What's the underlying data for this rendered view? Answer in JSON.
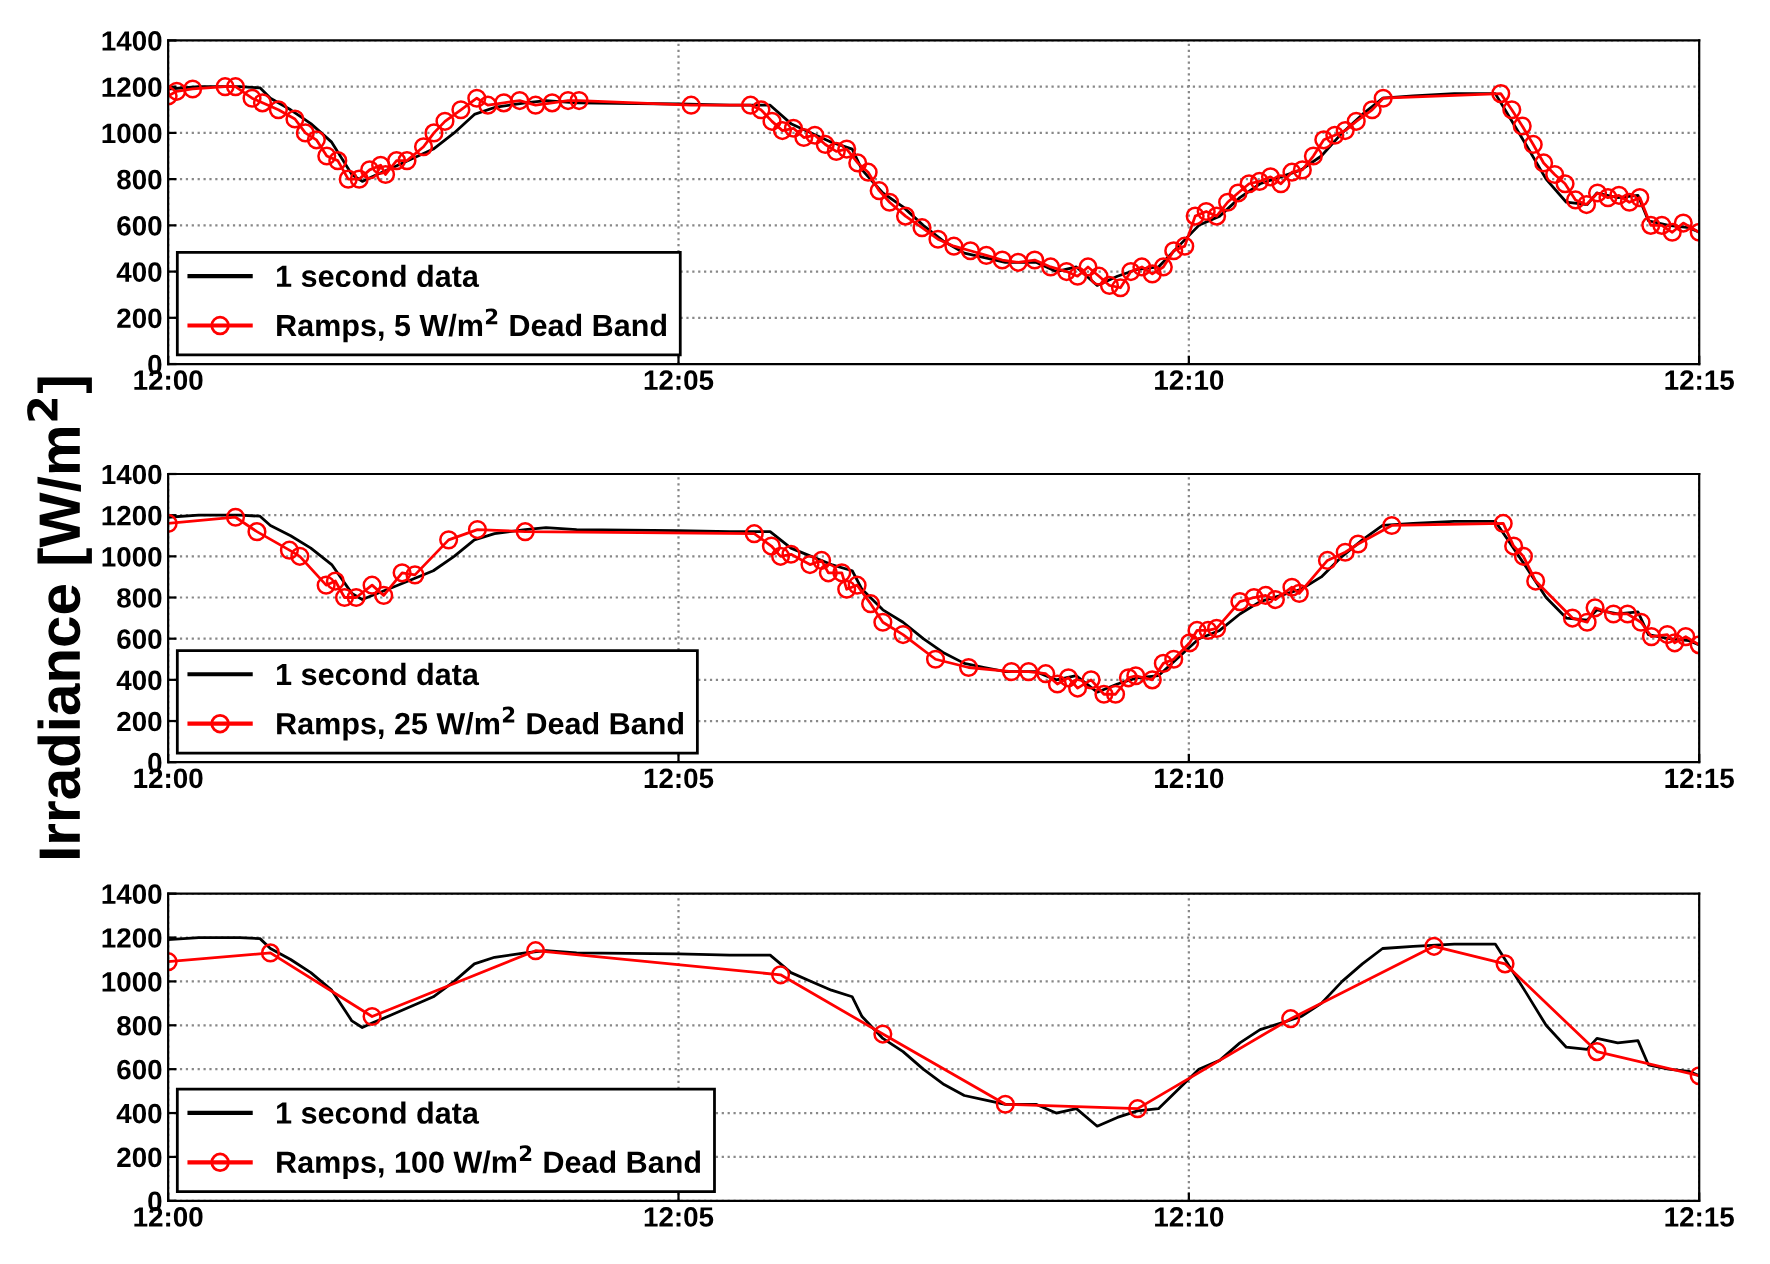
{
  "chart_data": [
    {
      "type": "line",
      "ylim": [
        0,
        1400
      ],
      "yticks": [
        0,
        200,
        400,
        600,
        800,
        1000,
        1200,
        1400
      ],
      "xlim": [
        12.0,
        12.25
      ],
      "xticks": [
        {
          "value": 12.0,
          "label": "12:00"
        },
        {
          "value": 12.0833333,
          "label": "12:05"
        },
        {
          "value": 12.1666667,
          "label": "12:10"
        },
        {
          "value": 12.25,
          "label": "12:15"
        }
      ],
      "grid": true,
      "legend": "bottom left",
      "line_style": "solid",
      "series": [
        {
          "name": "1 second data",
          "color": "#000000",
          "marker": "none",
          "x": [
            12.0,
            12.005,
            12.0117,
            12.015,
            12.0167,
            12.02,
            12.0233,
            12.0267,
            12.03,
            12.0317,
            12.0333,
            12.0367,
            12.04,
            12.0433,
            12.0467,
            12.05,
            12.0533,
            12.0583,
            12.0617,
            12.0667,
            12.0833,
            12.0917,
            12.0983,
            12.1017,
            12.105,
            12.1083,
            12.1117,
            12.1133,
            12.1167,
            12.12,
            12.1233,
            12.1267,
            12.13,
            12.1333,
            12.1367,
            12.1417,
            12.145,
            12.1483,
            12.1517,
            12.155,
            12.1583,
            12.1617,
            12.165,
            12.1683,
            12.1717,
            12.175,
            12.1783,
            12.1817,
            12.185,
            12.1883,
            12.1917,
            12.195,
            12.1983,
            12.2033,
            12.21,
            12.2167,
            12.2183,
            12.2217,
            12.225,
            12.2283,
            12.2317,
            12.2333,
            12.2367,
            12.24,
            12.2417,
            12.245,
            12.2483,
            12.25
          ],
          "values": [
            1190,
            1200,
            1200,
            1195,
            1150,
            1100,
            1040,
            960,
            820,
            790,
            810,
            850,
            890,
            930,
            1000,
            1080,
            1110,
            1130,
            1140,
            1130,
            1125,
            1120,
            1120,
            1040,
            1000,
            960,
            930,
            840,
            740,
            680,
            600,
            530,
            480,
            460,
            440,
            440,
            400,
            420,
            340,
            380,
            410,
            420,
            510,
            600,
            640,
            720,
            780,
            810,
            840,
            900,
            1000,
            1080,
            1150,
            1160,
            1170,
            1170,
            1100,
            950,
            800,
            700,
            690,
            740,
            720,
            730,
            620,
            600,
            590,
            570
          ]
        },
        {
          "name": "Ramps, 5 W/m$^{2}$ Dead Band",
          "color": "#ff0000",
          "marker": "circle",
          "x": [
            12.0,
            12.0014,
            12.004,
            12.0093,
            12.011,
            12.0137,
            12.0154,
            12.018,
            12.0207,
            12.0224,
            12.0242,
            12.0259,
            12.0277,
            12.0294,
            12.0312,
            12.0329,
            12.0347,
            12.0355,
            12.0373,
            12.039,
            12.0417,
            12.0434,
            12.0452,
            12.0478,
            12.0504,
            12.0522,
            12.0548,
            12.0574,
            12.06,
            12.0627,
            12.0653,
            12.0671,
            12.0854,
            12.0951,
            12.0968,
            12.0986,
            12.1003,
            12.1021,
            12.1038,
            12.1056,
            12.1073,
            12.1091,
            12.1108,
            12.1126,
            12.1143,
            12.1161,
            12.1178,
            12.1204,
            12.1231,
            12.1257,
            12.1283,
            12.131,
            12.1336,
            12.1362,
            12.1388,
            12.1415,
            12.1441,
            12.1467,
            12.1485,
            12.1502,
            12.152,
            12.1537,
            12.1555,
            12.1572,
            12.159,
            12.1607,
            12.1625,
            12.1642,
            12.166,
            12.1677,
            12.1695,
            12.1712,
            12.173,
            12.1747,
            12.1765,
            12.1782,
            12.18,
            12.1817,
            12.1835,
            12.1852,
            12.187,
            12.1887,
            12.1905,
            12.1922,
            12.194,
            12.1966,
            12.1984,
            12.2176,
            12.2194,
            12.2211,
            12.2229,
            12.2246,
            12.2264,
            12.2281,
            12.2298,
            12.2316,
            12.2334,
            12.2351,
            12.2369,
            12.2386,
            12.2403,
            12.2421,
            12.2439,
            12.2456,
            12.2474,
            12.25
          ],
          "values": [
            1160,
            1180,
            1190,
            1200,
            1200,
            1150,
            1130,
            1100,
            1060,
            1000,
            970,
            900,
            880,
            800,
            800,
            840,
            860,
            820,
            880,
            880,
            940,
            1000,
            1050,
            1100,
            1150,
            1120,
            1130,
            1140,
            1120,
            1130,
            1140,
            1140,
            1120,
            1120,
            1100,
            1050,
            1010,
            1020,
            980,
            990,
            950,
            920,
            930,
            870,
            830,
            750,
            700,
            640,
            590,
            540,
            510,
            490,
            470,
            450,
            440,
            450,
            420,
            400,
            380,
            420,
            380,
            340,
            330,
            400,
            420,
            390,
            420,
            490,
            510,
            640,
            660,
            640,
            700,
            740,
            780,
            790,
            810,
            780,
            830,
            840,
            900,
            970,
            990,
            1010,
            1050,
            1100,
            1150,
            1170,
            1100,
            1030,
            950,
            870,
            820,
            780,
            710,
            690,
            740,
            720,
            730,
            700,
            720,
            600,
            600,
            570,
            610,
            570
          ]
        }
      ]
    },
    {
      "type": "line",
      "ylabel": "Irradiance [W/m$^{2}$]",
      "ylim": [
        0,
        1400
      ],
      "yticks": [
        0,
        200,
        400,
        600,
        800,
        1000,
        1200,
        1400
      ],
      "xlim": [
        12.0,
        12.25
      ],
      "xticks": [
        {
          "value": 12.0,
          "label": "12:00"
        },
        {
          "value": 12.0833333,
          "label": "12:05"
        },
        {
          "value": 12.1666667,
          "label": "12:10"
        },
        {
          "value": 12.25,
          "label": "12:15"
        }
      ],
      "grid": true,
      "legend": "bottom left",
      "line_style": "solid",
      "series": [
        {
          "name": "1 second data",
          "color": "#000000",
          "marker": "none",
          "x": [
            12.0,
            12.005,
            12.0117,
            12.015,
            12.0167,
            12.02,
            12.0233,
            12.0267,
            12.03,
            12.0317,
            12.0333,
            12.0367,
            12.04,
            12.0433,
            12.0467,
            12.05,
            12.0533,
            12.0583,
            12.0617,
            12.0667,
            12.0833,
            12.0917,
            12.0983,
            12.1017,
            12.105,
            12.1083,
            12.1117,
            12.1133,
            12.1167,
            12.12,
            12.1233,
            12.1267,
            12.13,
            12.1333,
            12.1367,
            12.1417,
            12.145,
            12.1483,
            12.1517,
            12.155,
            12.1583,
            12.1617,
            12.165,
            12.1683,
            12.1717,
            12.175,
            12.1783,
            12.1817,
            12.185,
            12.1883,
            12.1917,
            12.195,
            12.1983,
            12.2033,
            12.21,
            12.2167,
            12.2183,
            12.2217,
            12.225,
            12.2283,
            12.2317,
            12.2333,
            12.2367,
            12.24,
            12.2417,
            12.245,
            12.2483,
            12.25
          ],
          "values": [
            1190,
            1200,
            1200,
            1195,
            1150,
            1100,
            1040,
            960,
            820,
            790,
            810,
            850,
            890,
            930,
            1000,
            1080,
            1110,
            1130,
            1140,
            1130,
            1125,
            1120,
            1120,
            1040,
            1000,
            960,
            930,
            840,
            740,
            680,
            600,
            530,
            480,
            460,
            440,
            440,
            400,
            420,
            340,
            380,
            410,
            420,
            510,
            600,
            640,
            720,
            780,
            810,
            840,
            900,
            1000,
            1080,
            1150,
            1160,
            1170,
            1170,
            1100,
            950,
            800,
            700,
            690,
            740,
            720,
            730,
            620,
            600,
            590,
            570
          ]
        },
        {
          "name": "Ramps, 25 W/m$^{2}$ Dead Band",
          "color": "#ff0000",
          "marker": "circle",
          "x": [
            12.0,
            12.011,
            12.0145,
            12.0198,
            12.0215,
            12.0258,
            12.0273,
            12.0288,
            12.0307,
            12.0333,
            12.0352,
            12.0382,
            12.0403,
            12.0458,
            12.0505,
            12.0583,
            12.0957,
            12.0985,
            12.1,
            12.1017,
            12.1048,
            12.1067,
            12.1078,
            12.11,
            12.1108,
            12.1125,
            12.1147,
            12.1167,
            12.12,
            12.1253,
            12.1307,
            12.1377,
            12.1405,
            12.1433,
            12.1452,
            12.147,
            12.1485,
            12.1507,
            12.1528,
            12.1547,
            12.1568,
            12.158,
            12.1607,
            12.1625,
            12.1642,
            12.1668,
            12.168,
            12.1698,
            12.1712,
            12.175,
            12.1773,
            12.1792,
            12.1808,
            12.1835,
            12.1847,
            12.1893,
            12.1922,
            12.1943,
            12.1998,
            12.218,
            12.2197,
            12.2213,
            12.2233,
            12.2293,
            12.2317,
            12.233,
            12.236,
            12.2383,
            12.2405,
            12.2422,
            12.2448,
            12.246,
            12.2478,
            12.25
          ],
          "values": [
            1160,
            1190,
            1120,
            1030,
            1000,
            860,
            880,
            800,
            800,
            860,
            810,
            920,
            910,
            1080,
            1130,
            1120,
            1110,
            1050,
            1000,
            1010,
            960,
            980,
            920,
            920,
            840,
            860,
            770,
            680,
            620,
            500,
            460,
            440,
            440,
            430,
            380,
            410,
            360,
            400,
            330,
            330,
            410,
            420,
            400,
            480,
            500,
            580,
            640,
            640,
            650,
            780,
            800,
            810,
            790,
            850,
            820,
            980,
            1020,
            1060,
            1150,
            1160,
            1050,
            1000,
            880,
            700,
            680,
            750,
            720,
            720,
            680,
            610,
            620,
            580,
            610,
            570
          ]
        }
      ]
    },
    {
      "type": "line",
      "ylim": [
        0,
        1400
      ],
      "yticks": [
        0,
        200,
        400,
        600,
        800,
        1000,
        1200,
        1400
      ],
      "xlim": [
        12.0,
        12.25
      ],
      "xticks": [
        {
          "value": 12.0,
          "label": "12:00"
        },
        {
          "value": 12.0833333,
          "label": "12:05"
        },
        {
          "value": 12.1666667,
          "label": "12:10"
        },
        {
          "value": 12.25,
          "label": "12:15"
        }
      ],
      "grid": true,
      "legend": "bottom left",
      "line_style": "solid",
      "series": [
        {
          "name": "1 second data",
          "color": "#000000",
          "marker": "none",
          "x": [
            12.0,
            12.005,
            12.0117,
            12.015,
            12.0167,
            12.02,
            12.0233,
            12.0267,
            12.03,
            12.0317,
            12.0333,
            12.0367,
            12.04,
            12.0433,
            12.0467,
            12.05,
            12.0533,
            12.0583,
            12.0617,
            12.0667,
            12.0833,
            12.0917,
            12.0983,
            12.1017,
            12.105,
            12.1083,
            12.1117,
            12.1133,
            12.1167,
            12.12,
            12.1233,
            12.1267,
            12.13,
            12.1333,
            12.1367,
            12.1417,
            12.145,
            12.1483,
            12.1517,
            12.155,
            12.1583,
            12.1617,
            12.165,
            12.1683,
            12.1717,
            12.175,
            12.1783,
            12.1817,
            12.185,
            12.1883,
            12.1917,
            12.195,
            12.1983,
            12.2033,
            12.21,
            12.2167,
            12.2183,
            12.2217,
            12.225,
            12.2283,
            12.2317,
            12.2333,
            12.2367,
            12.24,
            12.2417,
            12.245,
            12.2483,
            12.25
          ],
          "values": [
            1190,
            1200,
            1200,
            1195,
            1150,
            1100,
            1040,
            960,
            820,
            790,
            810,
            850,
            890,
            930,
            1000,
            1080,
            1110,
            1130,
            1140,
            1130,
            1125,
            1120,
            1120,
            1040,
            1000,
            960,
            930,
            840,
            740,
            680,
            600,
            530,
            480,
            460,
            440,
            440,
            400,
            420,
            340,
            380,
            410,
            420,
            510,
            600,
            640,
            720,
            780,
            810,
            840,
            900,
            1000,
            1080,
            1150,
            1160,
            1170,
            1170,
            1100,
            950,
            800,
            700,
            690,
            740,
            720,
            730,
            620,
            600,
            590,
            570
          ]
        },
        {
          "name": "Ramps, 100 W/m$^{2}$ Dead Band",
          "color": "#ff0000",
          "marker": "circle",
          "x": [
            12.0,
            12.0167,
            12.0333,
            12.06,
            12.1,
            12.1167,
            12.1367,
            12.1583,
            12.1833,
            12.2067,
            12.2183,
            12.2333,
            12.25
          ],
          "values": [
            1090,
            1130,
            840,
            1140,
            1030,
            760,
            440,
            420,
            830,
            1160,
            1080,
            680,
            570
          ]
        }
      ]
    }
  ]
}
